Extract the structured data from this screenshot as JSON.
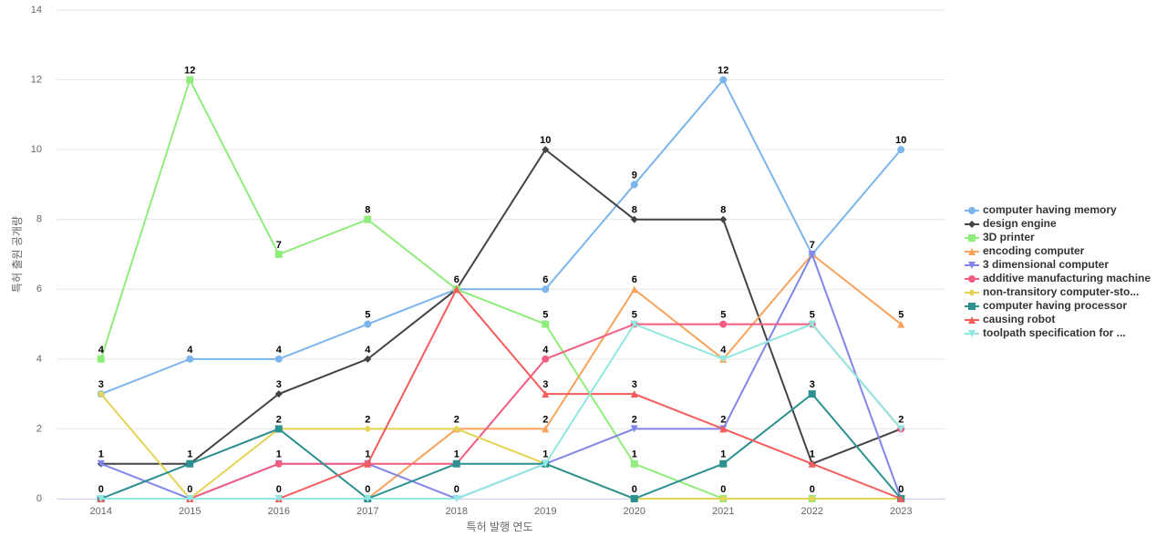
{
  "chart_data": {
    "type": "line",
    "x_label": "특허 발행 연도",
    "y_label": "특허 출원 공개량",
    "categories": [
      "2014",
      "2015",
      "2016",
      "2017",
      "2018",
      "2019",
      "2020",
      "2021",
      "2022",
      "2023"
    ],
    "ylim": [
      0,
      14
    ],
    "yticks": [
      0,
      2,
      4,
      6,
      8,
      10,
      12,
      14
    ],
    "grid": true,
    "legend": "right",
    "series": [
      {
        "name": "computer having memory",
        "color": "#7cb5ec",
        "values": [
          3,
          4,
          4,
          5,
          6,
          6,
          9,
          12,
          7,
          10
        ]
      },
      {
        "name": "design engine",
        "color": "#434348",
        "values": [
          1,
          1,
          3,
          4,
          6,
          10,
          8,
          8,
          1,
          2
        ]
      },
      {
        "name": "3D printer",
        "color": "#90ed7d",
        "values": [
          4,
          12,
          7,
          8,
          6,
          5,
          1,
          0,
          0,
          0
        ]
      },
      {
        "name": "encoding computer",
        "color": "#f7a35c",
        "values": [
          0,
          0,
          0,
          0,
          2,
          2,
          6,
          4,
          7,
          5
        ]
      },
      {
        "name": "3 dimensional computer",
        "color": "#8085e9",
        "values": [
          1,
          0,
          1,
          1,
          0,
          1,
          2,
          2,
          7,
          0
        ]
      },
      {
        "name": "additive manufacturing machine",
        "color": "#f15c80",
        "values": [
          0,
          0,
          1,
          1,
          1,
          4,
          5,
          5,
          5,
          2
        ]
      },
      {
        "name": "non-transitory computer-sto...",
        "color": "#e4d354",
        "values": [
          3,
          0,
          2,
          2,
          2,
          1,
          0,
          0,
          0,
          0
        ]
      },
      {
        "name": "computer having processor",
        "color": "#2b908f",
        "values": [
          0,
          1,
          2,
          0,
          1,
          1,
          0,
          1,
          3,
          0
        ]
      },
      {
        "name": "causing robot",
        "color": "#f45b5b",
        "values": [
          0,
          0,
          0,
          1,
          6,
          3,
          3,
          2,
          1,
          0
        ]
      },
      {
        "name": "toolpath specification for ...",
        "color": "#91e8e1",
        "values": [
          0,
          0,
          0,
          0,
          0,
          1,
          5,
          4,
          5,
          2
        ]
      }
    ]
  }
}
